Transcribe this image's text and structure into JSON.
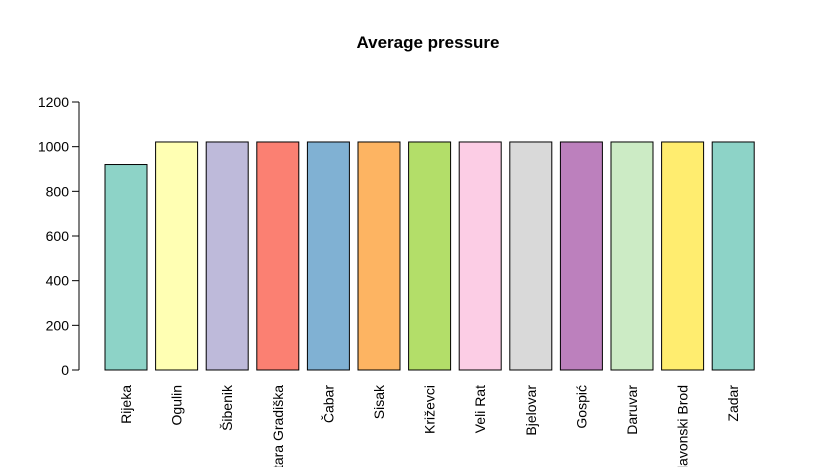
{
  "chart_data": {
    "type": "bar",
    "title": "Average pressure",
    "xlabel": "",
    "ylabel": "",
    "ylim": [
      0,
      1200
    ],
    "yticks": [
      0,
      200,
      400,
      600,
      800,
      1000,
      1200
    ],
    "grid": false,
    "categories": [
      "Rijeka",
      "Ogulin",
      "Šibenik",
      "Stara Gradiška",
      "Čabar",
      "Sisak",
      "Križevci",
      "Veli Rat",
      "Bjelovar",
      "Gospić",
      "Daruvar",
      "Slavonski Brod",
      "Zadar"
    ],
    "values": [
      920,
      1021,
      1021,
      1021,
      1021,
      1021,
      1021,
      1021,
      1021,
      1021,
      1021,
      1021,
      1021
    ],
    "colors": [
      "#8DD3C7",
      "#FFFFB3",
      "#BEBADA",
      "#FB8072",
      "#80B1D3",
      "#FDB462",
      "#B3DE69",
      "#FCCDE5",
      "#D9D9D9",
      "#BC80BD",
      "#CCEBC5",
      "#FFED6F",
      "#8DD3C7"
    ]
  }
}
